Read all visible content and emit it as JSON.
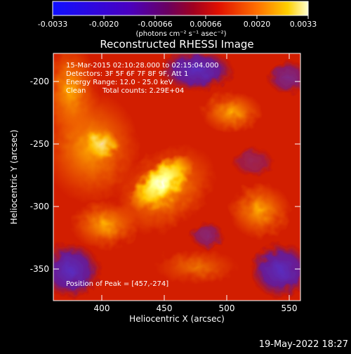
{
  "colorbar": {
    "ticks": [
      "-0.0033",
      "-0.0020",
      "-0.00066",
      "0.00066",
      "0.0020",
      "0.0033"
    ],
    "units": "(photons cm⁻² s⁻¹ asec⁻²)"
  },
  "title": "Reconstructed RHESSI Image",
  "info": {
    "line1": "15-Mar-2015 02:10:28.000 to 02:15:04.000",
    "line2": "Detectors: 3F 5F 6F 7F 8F 9F, Att 1",
    "line3": "Energy Range: 12.0 - 25.0 keV",
    "line4_label": "Clean",
    "line4_counts": "Total counts: 2.29E+04"
  },
  "peak": "Position of Peak = [457,-274]",
  "axes": {
    "xlabel": "Heliocentric X (arcsec)",
    "ylabel": "Heliocentric Y (arcsec)",
    "xticks": [
      "400",
      "450",
      "500",
      "550"
    ],
    "yticks": [
      "-200",
      "-250",
      "-300",
      "-350"
    ]
  },
  "timestamp": "19-May-2022 18:27",
  "colors": {
    "purple": "#5a2dbe",
    "red": "#d21e00",
    "orange": "#ff8c00",
    "yellow": "#ffff80"
  }
}
